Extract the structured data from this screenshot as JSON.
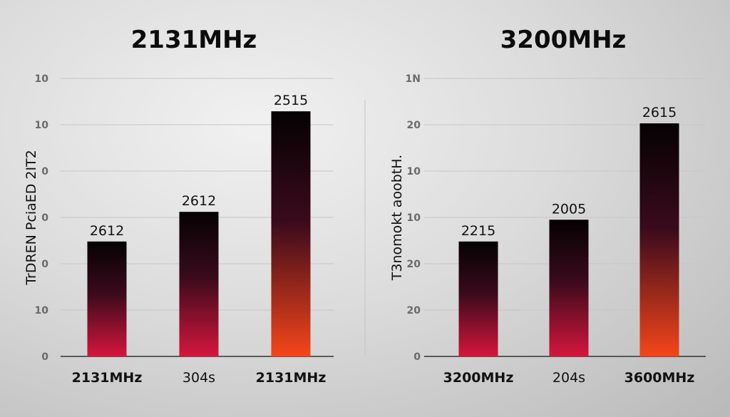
{
  "chart_data": [
    {
      "type": "bar",
      "title": "2131MHz",
      "ylabel": "TrDREN PciaED 2IT2",
      "xlabel": "",
      "ylim": [
        0,
        6
      ],
      "grid": true,
      "yticks": [
        {
          "value": 0,
          "label": "0"
        },
        {
          "value": 1,
          "label": "10"
        },
        {
          "value": 2,
          "label": "0"
        },
        {
          "value": 3,
          "label": "0"
        },
        {
          "value": 4,
          "label": "0"
        },
        {
          "value": 5,
          "label": "10"
        },
        {
          "value": 6,
          "label": "10"
        }
      ],
      "categories": [
        "2131MHz",
        "304s",
        "2131MHz"
      ],
      "category_bold": [
        true,
        false,
        true
      ],
      "values": [
        2.48,
        3.12,
        5.29
      ],
      "data_labels": [
        "2612",
        "2612",
        "2515"
      ],
      "bar_bottom_colors": [
        "#d4163c",
        "#d4163c",
        "#f5461a"
      ]
    },
    {
      "type": "bar",
      "title": "3200MHz",
      "ylabel": "T3nomokt aoobtH.",
      "xlabel": "",
      "ylim": [
        0,
        6
      ],
      "grid": true,
      "yticks": [
        {
          "value": 0,
          "label": "0"
        },
        {
          "value": 1,
          "label": "20"
        },
        {
          "value": 2,
          "label": "20"
        },
        {
          "value": 3,
          "label": "10"
        },
        {
          "value": 4,
          "label": "10"
        },
        {
          "value": 5,
          "label": "20"
        },
        {
          "value": 6,
          "label": "1N"
        }
      ],
      "categories": [
        "3200MHz",
        "204s",
        "3600MHz"
      ],
      "category_bold": [
        true,
        false,
        true
      ],
      "values": [
        2.48,
        2.95,
        5.03
      ],
      "data_labels": [
        "2215",
        "2005",
        "2615"
      ],
      "bar_bottom_colors": [
        "#d4163c",
        "#d4163c",
        "#f5461a"
      ]
    }
  ],
  "colors": {
    "bar_top": "#050203",
    "bar_mid": "#3a0a1c",
    "grid": "#c6c6c6",
    "baseline": "#333333"
  }
}
